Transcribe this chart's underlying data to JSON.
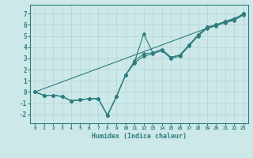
{
  "xlabel": "Humidex (Indice chaleur)",
  "x": [
    0,
    1,
    2,
    3,
    4,
    5,
    6,
    7,
    8,
    9,
    10,
    11,
    12,
    13,
    14,
    15,
    16,
    17,
    18,
    19,
    20,
    21,
    22,
    23
  ],
  "line_jagged1": [
    0.0,
    -0.3,
    -0.3,
    -0.4,
    -0.8,
    -0.7,
    -0.6,
    -0.6,
    -2.1,
    -0.4,
    1.5,
    2.7,
    5.2,
    3.5,
    3.8,
    3.1,
    3.3,
    4.2,
    5.1,
    5.8,
    6.0,
    6.3,
    6.5,
    7.0
  ],
  "line_jagged2": [
    0.0,
    -0.3,
    -0.3,
    -0.4,
    -0.8,
    -0.7,
    -0.6,
    -0.6,
    -2.1,
    -0.4,
    1.5,
    2.8,
    3.4,
    3.5,
    3.8,
    3.1,
    3.3,
    4.2,
    5.1,
    5.8,
    6.0,
    6.3,
    6.5,
    7.0
  ],
  "line_jagged3": [
    0.0,
    -0.3,
    -0.3,
    -0.4,
    -0.8,
    -0.7,
    -0.6,
    -0.6,
    -2.1,
    -0.4,
    1.5,
    2.6,
    3.2,
    3.4,
    3.7,
    3.0,
    3.2,
    4.1,
    5.0,
    5.7,
    5.9,
    6.2,
    6.4,
    6.9
  ],
  "line_straight": [
    0.0,
    0.3,
    0.6,
    0.9,
    1.2,
    1.5,
    1.8,
    2.1,
    2.4,
    2.7,
    3.0,
    3.3,
    3.6,
    3.9,
    4.2,
    4.5,
    4.8,
    5.1,
    5.4,
    5.7,
    6.0,
    6.3,
    6.6,
    6.9
  ],
  "line_color": "#2e7d7d",
  "bg_color": "#cce8e8",
  "grid_color": "#b8d8d8",
  "ylim": [
    -2.8,
    7.8
  ],
  "xlim": [
    -0.5,
    23.5
  ],
  "yticks": [
    -2,
    -1,
    0,
    1,
    2,
    3,
    4,
    5,
    6,
    7
  ],
  "xticks": [
    0,
    1,
    2,
    3,
    4,
    5,
    6,
    7,
    8,
    9,
    10,
    11,
    12,
    13,
    14,
    15,
    16,
    17,
    18,
    19,
    20,
    21,
    22,
    23
  ]
}
